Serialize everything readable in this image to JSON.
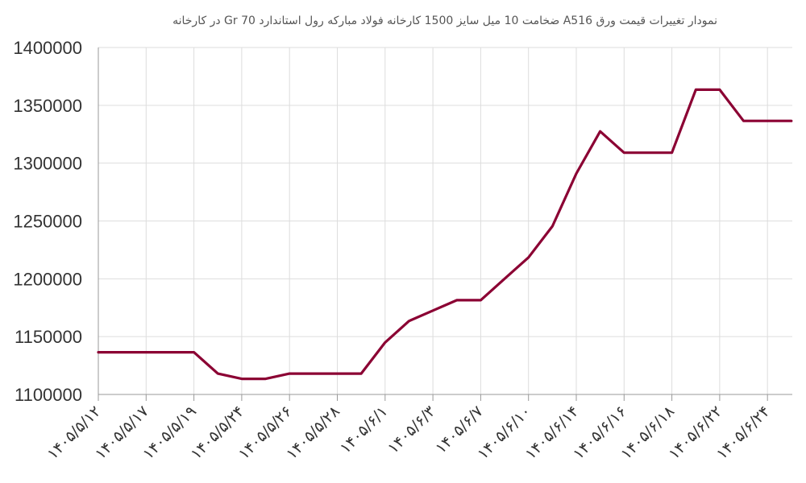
{
  "chart_data": {
    "type": "line",
    "title": "نمودار تغییرات قیمت ورق A516 ضخامت 10 میل سایز 1500 کارخانه فولاد مبارکه رول استاندارد Gr 70 در کارخانه",
    "xlabel": "",
    "ylabel": "",
    "ylim": [
      1100000,
      1400000
    ],
    "yticks": [
      1100000,
      1150000,
      1200000,
      1250000,
      1300000,
      1350000,
      1400000
    ],
    "grid": true,
    "x_tick_labels": [
      "۱۴۰۵/۵/۱۲",
      "۱۴۰۵/۵/۱۷",
      "۱۴۰۵/۵/۱۹",
      "۱۴۰۵/۵/۲۴",
      "۱۴۰۵/۵/۲۶",
      "۱۴۰۵/۵/۲۸",
      "۱۴۰۵/۶/۱",
      "۱۴۰۵/۶/۳",
      "۱۴۰۵/۶/۷",
      "۱۴۰۵/۶/۱۰",
      "۱۴۰۵/۶/۱۴",
      "۱۴۰۵/۶/۱۶",
      "۱۴۰۵/۶/۱۸",
      "۱۴۰۵/۶/۲۲",
      "۱۴۰۵/۶/۲۴"
    ],
    "series": [
      {
        "name": "",
        "color": "#8B0033",
        "values": [
          1136500,
          1136500,
          1136500,
          1136500,
          1136500,
          1118000,
          1113500,
          1113500,
          1118000,
          1118000,
          1118000,
          1118000,
          1145000,
          1163500,
          1172500,
          1181500,
          1181500,
          1200000,
          1218500,
          1245500,
          1291000,
          1327500,
          1309000,
          1309000,
          1309000,
          1363500,
          1363500,
          1336500,
          1336500,
          1336500
        ]
      }
    ]
  }
}
